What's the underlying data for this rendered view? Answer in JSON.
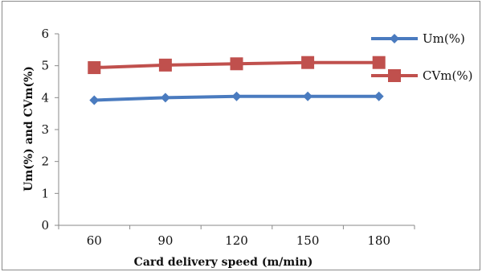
{
  "chart_data": {
    "type": "line",
    "title": "",
    "xlabel": "Card delivery speed (m/min)",
    "ylabel": "Um(%) and CVm(%)",
    "categories": [
      "60",
      "90",
      "120",
      "150",
      "180"
    ],
    "ylim": [
      0,
      6
    ],
    "yticks": [
      "0",
      "1",
      "2",
      "3",
      "4",
      "5",
      "6"
    ],
    "grid": false,
    "legend_position": "right",
    "series": [
      {
        "name": "Um(%)",
        "values": [
          3.92,
          4.0,
          4.04,
          4.04,
          4.04
        ],
        "color": "#4a7bbf",
        "marker": "diamond"
      },
      {
        "name": "CVm(%)",
        "values": [
          4.94,
          5.02,
          5.06,
          5.1,
          5.1
        ],
        "color": "#c0504d",
        "marker": "square"
      }
    ]
  }
}
